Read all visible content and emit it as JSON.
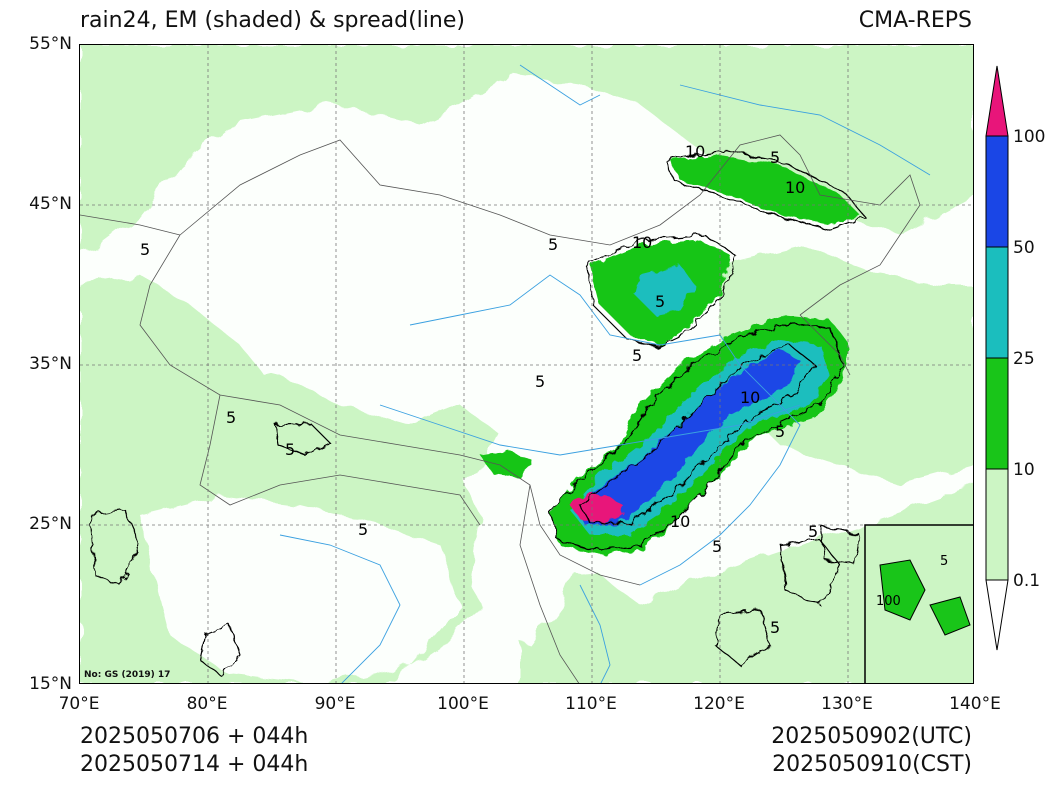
{
  "title_left": "rain24, EM (shaded) & spread(line)",
  "title_right": "CMA-REPS",
  "lat_ticks": [
    "55°N",
    "45°N",
    "35°N",
    "25°N",
    "15°N"
  ],
  "lon_ticks": [
    "70°E",
    "80°E",
    "90°E",
    "100°E",
    "110°E",
    "120°E",
    "130°E",
    "140°E"
  ],
  "colorbar": {
    "ticks": [
      "0.1",
      "10",
      "25",
      "50",
      "100"
    ],
    "colors": [
      "#ffffff",
      "#ccf5c4",
      "#19c519",
      "#1bbebe",
      "#1a46e6",
      "#e8157a"
    ]
  },
  "contour_labels": [
    "10",
    "5",
    "10",
    "5",
    "10",
    "5",
    "5",
    "5",
    "10",
    "5",
    "5",
    "5",
    "5",
    "5",
    "5",
    "5",
    "5",
    "10"
  ],
  "inset_labels": [
    "100",
    "5"
  ],
  "map_note": "No: GS (2019) 17",
  "footer": {
    "init_utc": "2025050706  +  044h",
    "init_cst": "2025050714  +  044h",
    "valid_utc": "2025050902(UTC)",
    "valid_cst": "2025050910(CST)"
  },
  "colors": {
    "water": "#3aa0e0",
    "border": "#555555",
    "contour": "#000000"
  }
}
